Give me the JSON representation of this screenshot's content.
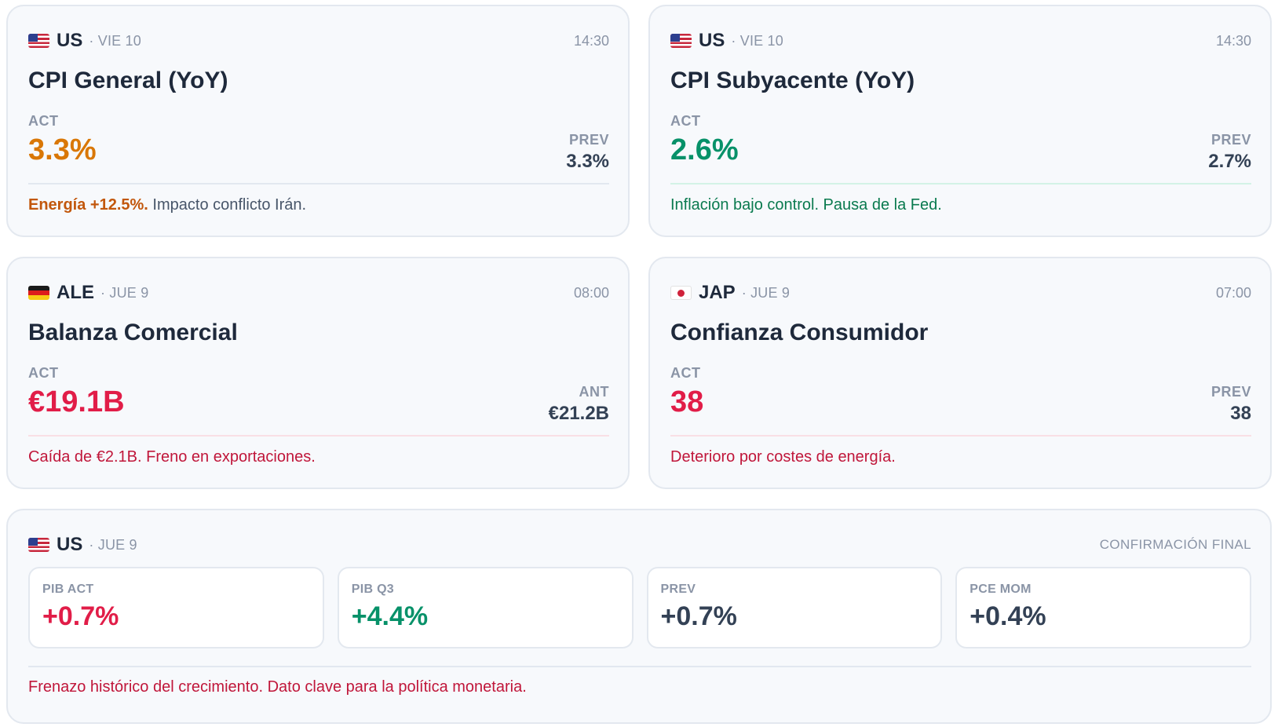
{
  "cards": [
    {
      "country": "US",
      "flag_icon": "us-flag-icon",
      "date": "· VIE 10",
      "time": "14:30",
      "title": "CPI General (YoY)",
      "act_label": "ACT",
      "act_value": "3.3%",
      "act_color": "#d97706",
      "prev_label": "PREV",
      "prev_value": "3.3%",
      "note_strong": "Energía +12.5%.",
      "note_text": " Impacto conflicto Irán."
    },
    {
      "country": "US",
      "flag_icon": "us-flag-icon",
      "date": "· VIE 10",
      "time": "14:30",
      "title": "CPI Subyacente (YoY)",
      "act_label": "ACT",
      "act_value": "2.6%",
      "act_color": "#079169",
      "prev_label": "PREV",
      "prev_value": "2.7%",
      "note_text": "Inflación bajo control. Pausa de la Fed."
    },
    {
      "country": "ALE",
      "flag_icon": "germany-flag-icon",
      "date": "· JUE 9",
      "time": "08:00",
      "title": "Balanza Comercial",
      "act_label": "ACT",
      "act_value": "€19.1B",
      "act_color": "#e11d48",
      "prev_label": "ANT",
      "prev_value": "€21.2B",
      "note_text": "Caída de €2.1B. Freno en exportaciones."
    },
    {
      "country": "JAP",
      "flag_icon": "japan-flag-icon",
      "date": "· JUE 9",
      "time": "07:00",
      "title": "Confianza Consumidor",
      "act_label": "ACT",
      "act_value": "38",
      "act_color": "#e11d48",
      "prev_label": "PREV",
      "prev_value": "38",
      "note_text": "Deterioro por costes de energía."
    }
  ],
  "gdp_card": {
    "country": "US",
    "flag_icon": "us-flag-icon",
    "date": "· JUE 9",
    "tag": "CONFIRMACIÓN FINAL",
    "metrics": [
      {
        "label": "PIB ACT",
        "value": "+0.7%",
        "color": "#e11d48"
      },
      {
        "label": "PIB Q3",
        "value": "+4.4%",
        "color": "#079169"
      },
      {
        "label": "PREV",
        "value": "+0.7%",
        "color": "#334155"
      },
      {
        "label": "PCE MOM",
        "value": "+0.4%",
        "color": "#334155"
      }
    ],
    "note_text": "Frenazo histórico del crecimiento. Dato clave para la política monetaria."
  }
}
